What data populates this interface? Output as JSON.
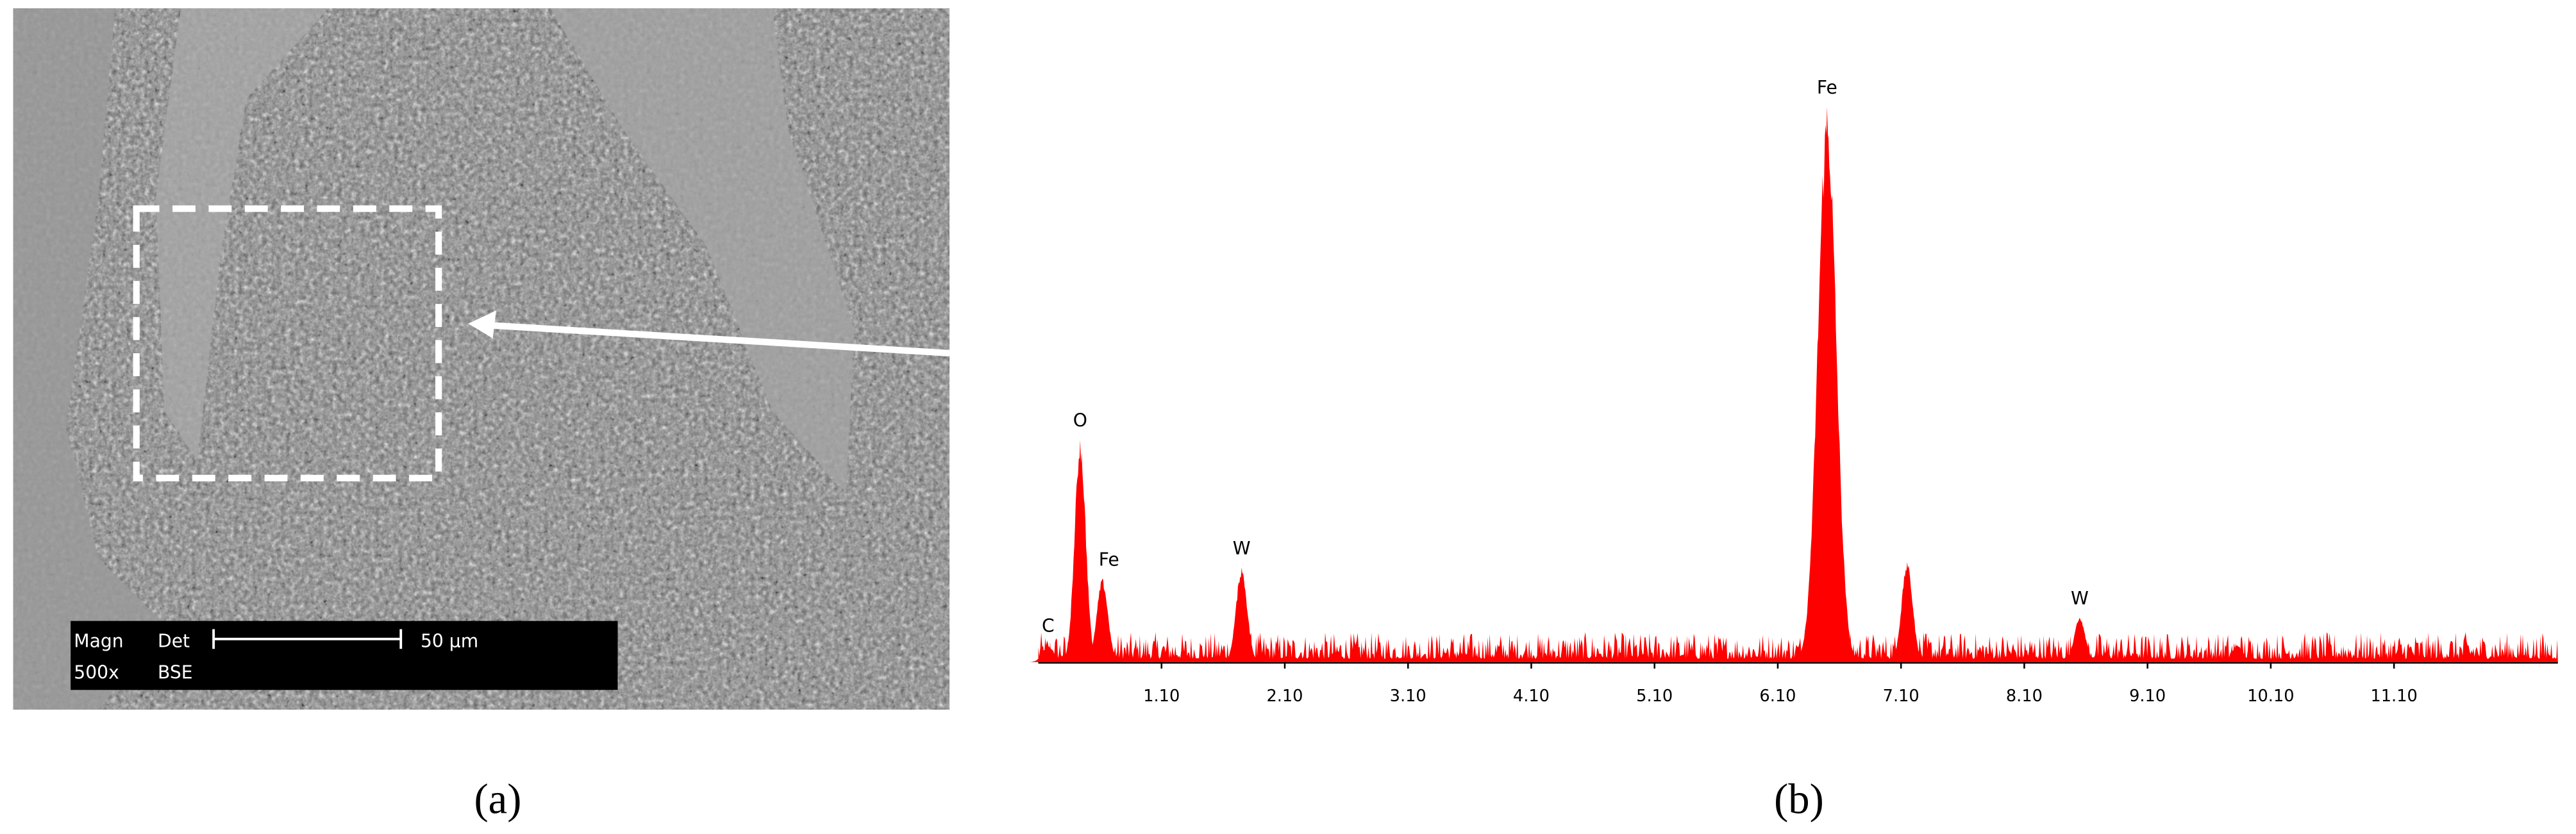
{
  "sem_image": {
    "magn_label": "Magn",
    "det_label": "Det",
    "scale": "50 µm",
    "magn": "500x",
    "det": "BSE"
  },
  "captions": [
    "(a)",
    "(b)"
  ],
  "chart_data": {
    "type": "spectrum",
    "color": "#ff0000",
    "xlim": [
      0.1,
      12.43
    ],
    "xticks": [
      {
        "value": 1.1,
        "label": "1.10"
      },
      {
        "value": 2.1,
        "label": "2.10"
      },
      {
        "value": 3.1,
        "label": "3.10"
      },
      {
        "value": 4.1,
        "label": "4.10"
      },
      {
        "value": 5.1,
        "label": "5.10"
      },
      {
        "value": 6.1,
        "label": "6.10"
      },
      {
        "value": 7.1,
        "label": "7.10"
      },
      {
        "value": 8.1,
        "label": "8.10"
      },
      {
        "value": 9.1,
        "label": "9.10"
      },
      {
        "value": 10.1,
        "label": "10.10"
      },
      {
        "value": 11.1,
        "label": "11.10"
      }
    ],
    "ylim": [
      0,
      100
    ],
    "baseline": 3,
    "peaks": {
      "x": [
        0.18,
        0.44,
        0.62,
        1.75,
        6.5,
        7.15,
        8.55,
        9.83
      ],
      "values": [
        3,
        40,
        15,
        17,
        100,
        18,
        8,
        3
      ],
      "labels": [
        "C",
        "O",
        "Fe",
        "W",
        "Fe",
        null,
        "W",
        null
      ]
    }
  }
}
